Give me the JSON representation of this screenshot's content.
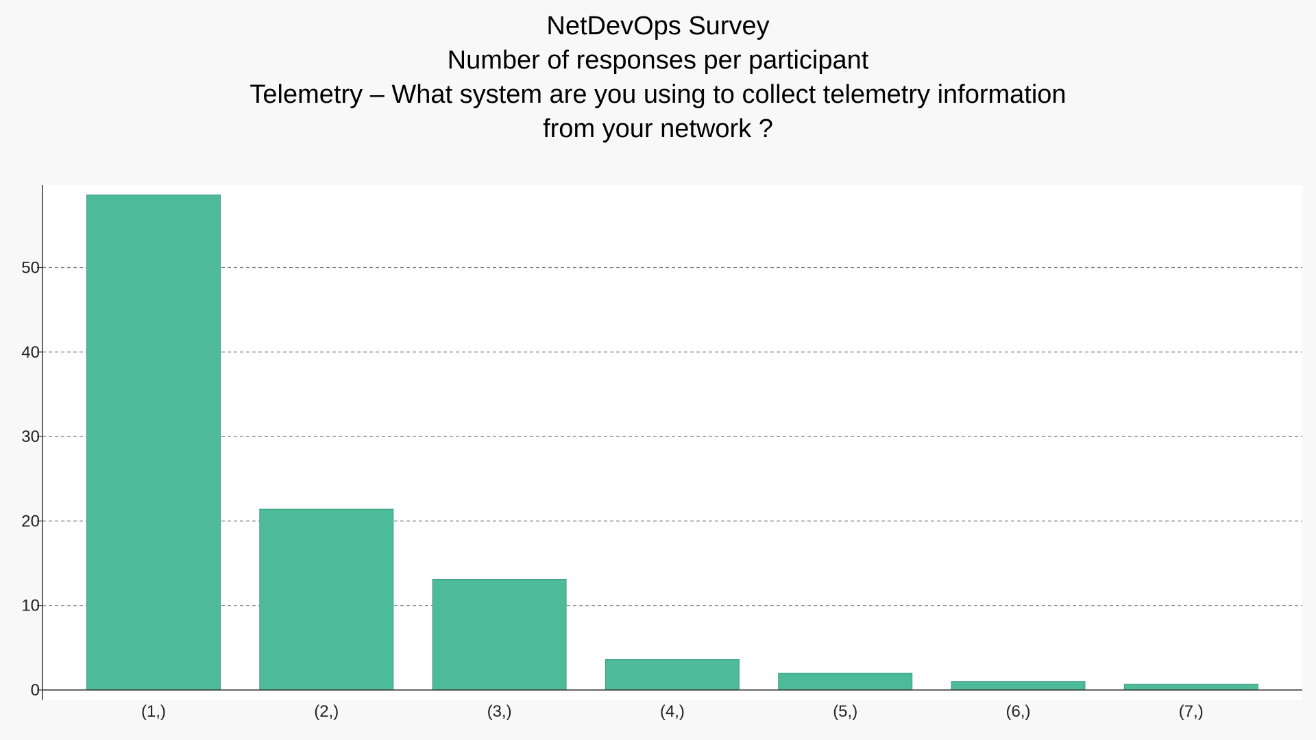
{
  "chart_data": {
    "type": "bar",
    "title_lines": [
      "NetDevOps Survey",
      "Number of responses per participant",
      "Telemetry – What system are you using to collect telemetry information",
      "from your network ?"
    ],
    "xlabel": "",
    "ylabel": "",
    "categories": [
      "(1,)",
      "(2,)",
      "(3,)",
      "(4,)",
      "(5,)",
      "(6,)",
      "(7,)"
    ],
    "values": [
      58.6,
      21.4,
      13.1,
      3.6,
      2.0,
      1.0,
      0.7
    ],
    "ylim": [
      0,
      60
    ],
    "yticks": [
      0,
      10,
      20,
      30,
      40,
      50
    ],
    "grid": true,
    "legend": "none",
    "colors": {
      "bar": "#4dbb99",
      "bar_edge": "#3a9e80",
      "plot_background": "#ffffff",
      "figure_background": "#f8f8f8"
    }
  }
}
